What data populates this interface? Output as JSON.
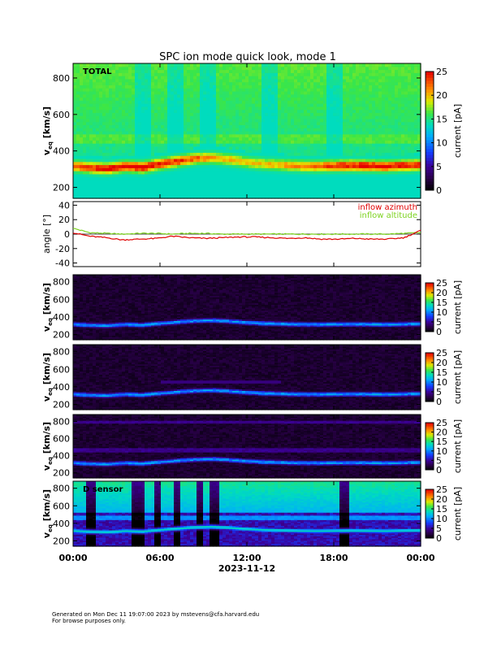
{
  "title": "SPC ion mode quick look, mode 1",
  "footer": {
    "line1": "Generated on Mon Dec 11 19:07:00 2023 by mstevens@cfa.harvard.edu",
    "line2": "For browse purposes only."
  },
  "chart_data": [
    {
      "type": "heatmap",
      "panel_label": "TOTAL",
      "ylabel_main": "v",
      "ylabel_sub": "eq",
      "ylabel_unit": "[km/s]",
      "ylim": [
        140,
        880
      ],
      "yticks": [
        200,
        400,
        600,
        800
      ],
      "ridge_velocity": [
        320,
        310,
        305,
        318,
        312,
        330,
        345,
        360,
        365,
        355,
        340,
        330,
        325,
        320,
        318,
        320,
        322,
        320,
        318,
        322,
        325
      ],
      "colorbar": {
        "label": "current [pA]",
        "range": [
          0,
          25
        ],
        "ticks": [
          0,
          5,
          10,
          15,
          20,
          25
        ]
      }
    },
    {
      "type": "line",
      "ylabel": "angle [°]",
      "ylim": [
        -45,
        45
      ],
      "yticks": [
        -40,
        -20,
        0,
        20,
        40
      ],
      "series": [
        {
          "name": "inflow azimuth",
          "color": "#e00000",
          "values": [
            2,
            -3,
            -5,
            -8,
            -7,
            -6,
            -3,
            -5,
            -6,
            -5,
            -4,
            -4,
            -5,
            -6,
            -5,
            -7,
            -7,
            -6,
            -7,
            -7,
            -5,
            5
          ]
        },
        {
          "name": "inflow altitude",
          "color": "#7ed321",
          "values": [
            8,
            2,
            1,
            0,
            1,
            1,
            0,
            1,
            1,
            0,
            0,
            0,
            0,
            0,
            0,
            0,
            0,
            0,
            0,
            0,
            1,
            2
          ]
        }
      ]
    },
    {
      "type": "heatmap",
      "panel_label": "",
      "ylabel_main": "v",
      "ylabel_sub": "eq",
      "ylabel_unit": "[km/s]",
      "ylim": [
        140,
        880
      ],
      "yticks": [
        200,
        400,
        600,
        800
      ],
      "ridge_velocity": [
        320,
        310,
        305,
        318,
        312,
        330,
        345,
        360,
        365,
        355,
        340,
        330,
        325,
        320,
        318,
        320,
        322,
        320,
        318,
        322,
        325
      ],
      "colorbar": {
        "label": "current [pA]",
        "range": [
          0,
          25
        ],
        "ticks": [
          0,
          5,
          10,
          15,
          20,
          25
        ]
      }
    },
    {
      "type": "heatmap",
      "panel_label": "",
      "ylabel_main": "v",
      "ylabel_sub": "eq",
      "ylabel_unit": "[km/s]",
      "ylim": [
        140,
        880
      ],
      "yticks": [
        200,
        400,
        600,
        800
      ],
      "ridge_velocity": [
        320,
        310,
        305,
        318,
        312,
        330,
        345,
        360,
        365,
        355,
        340,
        330,
        325,
        320,
        318,
        320,
        322,
        320,
        318,
        322,
        325
      ],
      "colorbar": {
        "label": "current [pA]",
        "range": [
          0,
          25
        ],
        "ticks": [
          0,
          5,
          10,
          15,
          20,
          25
        ]
      }
    },
    {
      "type": "heatmap",
      "panel_label": "",
      "ylabel_main": "v",
      "ylabel_sub": "eq",
      "ylabel_unit": "[km/s]",
      "ylim": [
        140,
        880
      ],
      "yticks": [
        200,
        400,
        600,
        800
      ],
      "ridge_velocity": [
        320,
        310,
        305,
        318,
        312,
        330,
        345,
        360,
        365,
        355,
        340,
        330,
        325,
        320,
        318,
        320,
        322,
        320,
        318,
        322,
        325
      ],
      "colorbar": {
        "label": "current [pA]",
        "range": [
          0,
          25
        ],
        "ticks": [
          0,
          5,
          10,
          15,
          20,
          25
        ]
      }
    },
    {
      "type": "heatmap",
      "panel_label": "D sensor",
      "ylabel_main": "v",
      "ylabel_sub": "eq",
      "ylabel_unit": "[km/s]",
      "ylim": [
        140,
        880
      ],
      "yticks": [
        200,
        400,
        600,
        800
      ],
      "ridge_velocity": [
        320,
        310,
        305,
        318,
        312,
        330,
        345,
        360,
        365,
        355,
        340,
        330,
        325,
        320,
        318,
        320,
        322,
        320,
        318,
        322,
        325
      ],
      "colorbar": {
        "label": "current [pA]",
        "range": [
          0,
          25
        ],
        "ticks": [
          0,
          5,
          10,
          15,
          20,
          25
        ]
      }
    }
  ],
  "x_axis": {
    "ticks": [
      "00:00",
      "06:00",
      "12:00",
      "18:00",
      "00:00"
    ],
    "date_label": "2023-11-12"
  }
}
